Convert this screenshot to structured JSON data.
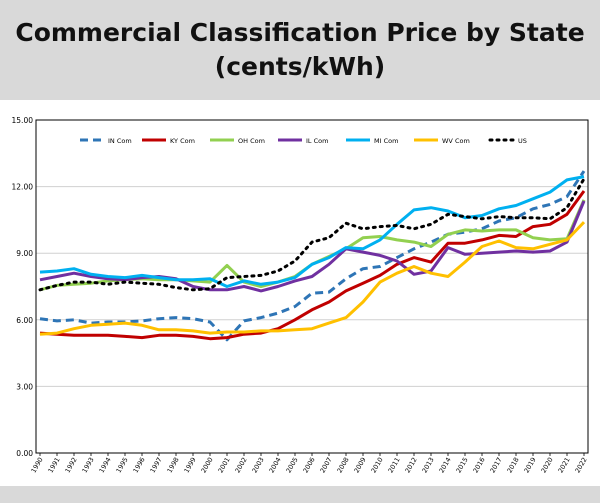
{
  "title": {
    "line1": "Commercial Classification Price by State",
    "line2": "(cents/kWh)"
  },
  "chart_data": {
    "type": "line",
    "title": "Commercial Classification Price by State (cents/kWh)",
    "xlabel": "",
    "ylabel": "",
    "ylim": [
      0,
      15
    ],
    "yticks": [
      "0.00",
      "3.00",
      "6.00",
      "9.00",
      "12.00",
      "15.00"
    ],
    "ytick_values": [
      0,
      3,
      6,
      9,
      12,
      15
    ],
    "grid": "horizontal",
    "legend_position": "top",
    "categories": [
      "1990",
      "1991",
      "1992",
      "1993",
      "1994",
      "1995",
      "1996",
      "1997",
      "1998",
      "1999",
      "2000",
      "2001",
      "2002",
      "2003",
      "2004",
      "2005",
      "2006",
      "2007",
      "2008",
      "2009",
      "2010",
      "2011",
      "2012",
      "2013",
      "2014",
      "2015",
      "2016",
      "2017",
      "2018",
      "2019",
      "2020",
      "2021",
      "2022"
    ],
    "series": [
      {
        "name": "IN Com",
        "color": "#2e75b6",
        "style": "dashed",
        "values": [
          6.05,
          5.95,
          6.0,
          5.85,
          5.9,
          5.9,
          5.95,
          6.05,
          6.1,
          6.05,
          5.9,
          5.1,
          5.95,
          6.1,
          6.3,
          6.6,
          7.2,
          7.25,
          7.85,
          8.3,
          8.4,
          8.8,
          9.2,
          9.5,
          9.85,
          9.95,
          10.1,
          10.45,
          10.6,
          11.0,
          11.2,
          11.55,
          12.7
        ]
      },
      {
        "name": "KY Com",
        "color": "#c00000",
        "style": "solid",
        "values": [
          5.4,
          5.35,
          5.3,
          5.3,
          5.3,
          5.25,
          5.2,
          5.3,
          5.3,
          5.25,
          5.15,
          5.2,
          5.35,
          5.4,
          5.6,
          6.0,
          6.45,
          6.8,
          7.3,
          7.65,
          8.0,
          8.5,
          8.8,
          8.6,
          9.45,
          9.45,
          9.6,
          9.8,
          9.75,
          10.2,
          10.3,
          10.75,
          11.8
        ]
      },
      {
        "name": "OH Com",
        "color": "#92d050",
        "style": "solid",
        "values": [
          7.35,
          7.55,
          7.6,
          7.65,
          7.75,
          7.8,
          7.85,
          7.8,
          7.8,
          7.75,
          7.7,
          8.45,
          7.7,
          7.5,
          7.7,
          7.95,
          8.5,
          8.85,
          9.2,
          9.7,
          9.75,
          9.6,
          9.5,
          9.3,
          9.85,
          10.05,
          10.0,
          10.05,
          10.05,
          9.7,
          9.6,
          9.65,
          11.4
        ]
      },
      {
        "name": "IL Com",
        "color": "#7030a0",
        "style": "solid",
        "values": [
          7.8,
          7.95,
          8.1,
          7.95,
          7.85,
          7.8,
          7.9,
          7.95,
          7.85,
          7.5,
          7.35,
          7.35,
          7.5,
          7.3,
          7.5,
          7.75,
          7.95,
          8.5,
          9.2,
          9.05,
          8.9,
          8.65,
          8.05,
          8.2,
          9.25,
          8.95,
          9.0,
          9.05,
          9.1,
          9.05,
          9.1,
          9.5,
          11.35
        ]
      },
      {
        "name": "MI Com",
        "color": "#00b0f0",
        "style": "solid",
        "values": [
          8.15,
          8.2,
          8.3,
          8.05,
          7.95,
          7.9,
          8.0,
          7.9,
          7.8,
          7.8,
          7.85,
          7.5,
          7.75,
          7.6,
          7.7,
          7.9,
          8.5,
          8.8,
          9.25,
          9.2,
          9.6,
          10.3,
          10.95,
          11.05,
          10.9,
          10.6,
          10.7,
          11.0,
          11.15,
          11.45,
          11.75,
          12.3,
          12.45
        ]
      },
      {
        "name": "WV Com",
        "color": "#ffc000",
        "style": "solid",
        "values": [
          5.35,
          5.4,
          5.6,
          5.75,
          5.8,
          5.85,
          5.75,
          5.55,
          5.55,
          5.5,
          5.4,
          5.45,
          5.45,
          5.5,
          5.5,
          5.55,
          5.6,
          5.85,
          6.1,
          6.8,
          7.7,
          8.1,
          8.4,
          8.1,
          7.95,
          8.6,
          9.3,
          9.55,
          9.25,
          9.2,
          9.4,
          9.6,
          10.4
        ]
      },
      {
        "name": "US",
        "color": "#000000",
        "style": "dotted",
        "values": [
          7.35,
          7.55,
          7.7,
          7.7,
          7.6,
          7.7,
          7.65,
          7.6,
          7.45,
          7.35,
          7.4,
          7.9,
          7.95,
          8.0,
          8.2,
          8.65,
          9.5,
          9.7,
          10.35,
          10.1,
          10.2,
          10.25,
          10.1,
          10.3,
          10.75,
          10.65,
          10.55,
          10.65,
          10.6,
          10.6,
          10.55,
          11.05,
          12.35
        ]
      }
    ]
  }
}
